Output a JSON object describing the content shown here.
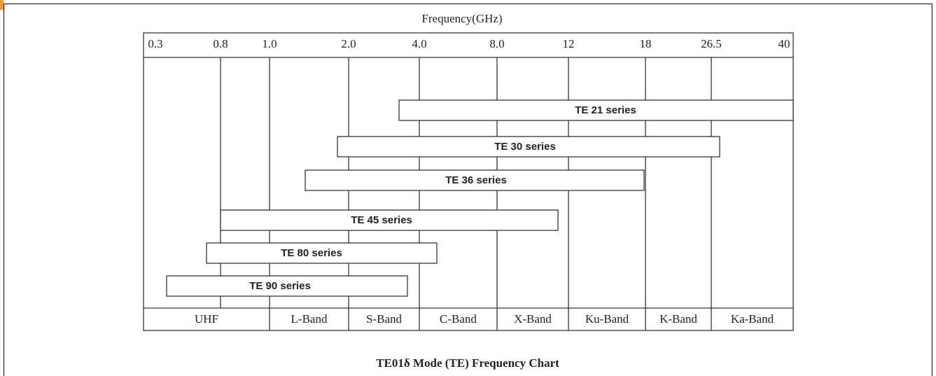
{
  "title": "Frequency(GHz)",
  "ticks": [
    "0.3",
    "0.8",
    "1.0",
    "2.0",
    "4.0",
    "8.0",
    "12",
    "18",
    "26.5",
    "40"
  ],
  "bands": [
    "UHF",
    "L-Band",
    "S-Band",
    "C-Band",
    "X-Band",
    "Ku-Band",
    "K-Band",
    "Ka-Band"
  ],
  "series": [
    "TE 21 series",
    "TE 30 series",
    "TE 36 series",
    "TE 45 series",
    "TE 80 series",
    "TE 90 series"
  ],
  "caption": "TE01δ Mode (TE) Frequency Chart"
}
